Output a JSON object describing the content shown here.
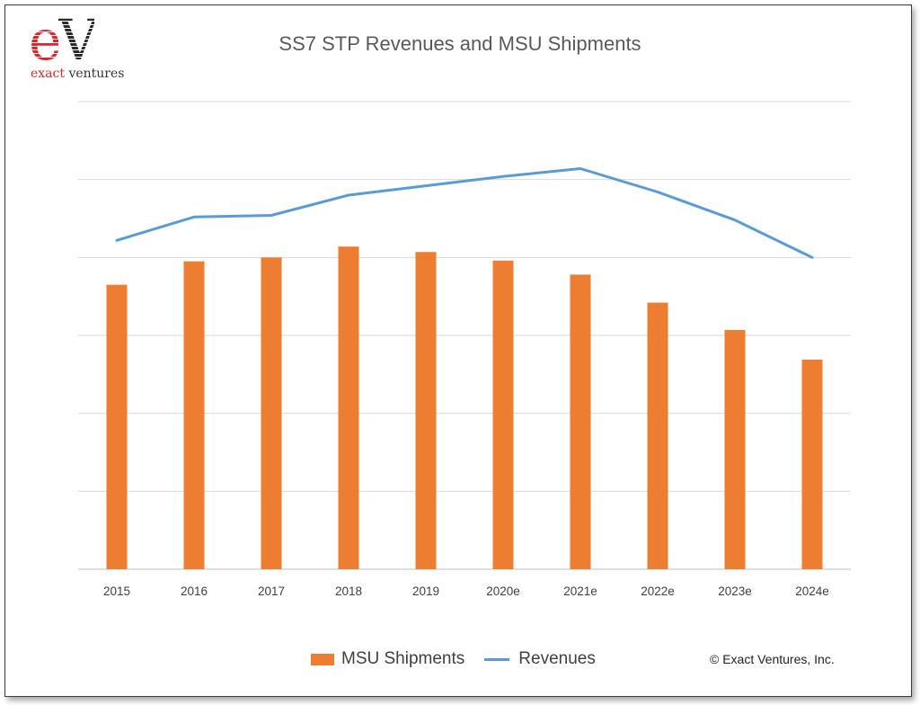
{
  "logo": {
    "letter_e": "e",
    "letter_v": "V",
    "word_exact": "exact",
    "word_ventures": " ventures",
    "e_color": "#d42a2f",
    "v_color": "#2a2a2a"
  },
  "copyright": "© Exact Ventures, Inc.",
  "chart_data": {
    "type": "bar",
    "title": "SS7 STP Revenues and MSU Shipments",
    "xlabel": "",
    "ylabel": "",
    "categories": [
      "2015",
      "2016",
      "2017",
      "2018",
      "2019",
      "2020e",
      "2021e",
      "2022e",
      "2023e",
      "2024e"
    ],
    "ylim": [
      0,
      6
    ],
    "grid": true,
    "legend_position": "bottom",
    "series": [
      {
        "name": "MSU Shipments",
        "type": "bar",
        "color": "#ed7d31",
        "values": [
          3.65,
          3.95,
          4.0,
          4.14,
          4.07,
          3.96,
          3.78,
          3.42,
          3.07,
          2.69
        ]
      },
      {
        "name": "Revenues",
        "type": "line",
        "color": "#5b9bd5",
        "values": [
          4.22,
          4.52,
          4.54,
          4.8,
          4.92,
          5.04,
          5.14,
          4.84,
          4.48,
          4.0
        ]
      }
    ]
  }
}
